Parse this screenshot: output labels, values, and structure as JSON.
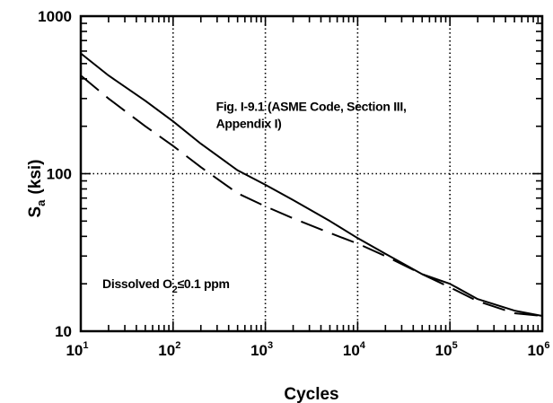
{
  "chart_data": {
    "type": "line",
    "title": "",
    "xlabel": "Cycles",
    "ylabel": "S",
    "ylabel_sub": "a",
    "ylabel_unit": "(ksi)",
    "xscale": "log",
    "yscale": "log",
    "xlim": [
      10,
      1000000
    ],
    "ylim": [
      10,
      1000
    ],
    "grid": true,
    "legend": "none",
    "x_ticks": [
      {
        "base": "10",
        "exp": "1"
      },
      {
        "base": "10",
        "exp": "2"
      },
      {
        "base": "10",
        "exp": "3"
      },
      {
        "base": "10",
        "exp": "4"
      },
      {
        "base": "10",
        "exp": "5"
      },
      {
        "base": "10",
        "exp": "6"
      }
    ],
    "y_ticks": [
      "10",
      "100",
      "1000"
    ],
    "series": [
      {
        "style": "solid",
        "color": "#000000",
        "x": [
          10,
          20,
          50,
          100,
          200,
          500,
          1000,
          2000,
          5000,
          10000,
          20000,
          50000,
          100000,
          200000,
          500000,
          1000000
        ],
        "y": [
          580,
          420,
          290,
          215,
          155,
          105,
          85,
          68,
          50,
          39,
          31,
          23,
          20,
          16,
          13.5,
          12.5
        ]
      },
      {
        "style": "dashed",
        "color": "#000000",
        "x": [
          10,
          20,
          50,
          100,
          200,
          500,
          1000,
          2000,
          5000,
          10000,
          20000,
          50000,
          100000,
          200000,
          500000,
          1000000
        ],
        "y": [
          420,
          300,
          200,
          150,
          110,
          75,
          62,
          52,
          42,
          36,
          30,
          23,
          19,
          15.5,
          13,
          12.5
        ]
      }
    ],
    "annotations": [
      {
        "lines": [
          "Fig. I-9.1 (ASME Code, Section III,",
          "Appendix I)"
        ],
        "at": [
          1000,
          250
        ]
      },
      {
        "text": "Dissolved O",
        "sub": "2",
        "rest": "≤0.1 ppm",
        "at": [
          30,
          20
        ]
      }
    ]
  }
}
